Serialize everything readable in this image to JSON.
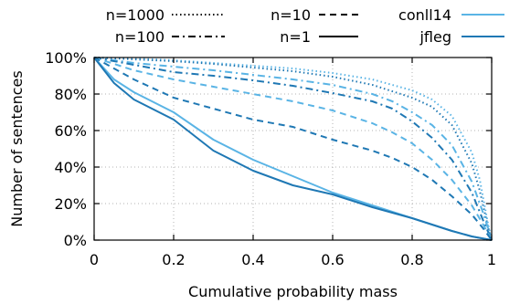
{
  "chart_data": {
    "type": "line",
    "xlabel": "Cumulative probability mass",
    "ylabel": "Number of sentences",
    "xlim": [
      0,
      1
    ],
    "ylim": [
      0,
      100
    ],
    "x_ticks": [
      "0",
      "0.2",
      "0.4",
      "0.6",
      "0.8",
      "1"
    ],
    "y_ticks": [
      "0%",
      "20%",
      "40%",
      "60%",
      "80%",
      "100%"
    ],
    "grid": true,
    "legend_placement": "top",
    "legend": {
      "styles": [
        {
          "label": "n=1000",
          "dash": "dotted"
        },
        {
          "label": "n=10",
          "dash": "dashed"
        },
        {
          "label": "n=100",
          "dash": "dash-dot"
        },
        {
          "label": "n=1",
          "dash": "solid"
        }
      ],
      "datasets": [
        {
          "label": "conll14",
          "color": "#5ab4e5"
        },
        {
          "label": "jfleg",
          "color": "#1f78b4"
        }
      ]
    },
    "series": [
      {
        "dataset": "conll14",
        "n": "n=1000",
        "color": "#5ab4e5",
        "dash": "dotted",
        "x": [
          0,
          0.1,
          0.2,
          0.3,
          0.4,
          0.5,
          0.6,
          0.7,
          0.8,
          0.85,
          0.9,
          0.95,
          0.97,
          0.99,
          1
        ],
        "y": [
          100,
          99.5,
          98.5,
          97,
          95.5,
          94,
          91.5,
          88,
          82,
          77,
          68,
          48,
          33,
          10,
          0
        ]
      },
      {
        "dataset": "jfleg",
        "n": "n=1000",
        "color": "#1f78b4",
        "dash": "dotted",
        "x": [
          0,
          0.1,
          0.2,
          0.3,
          0.4,
          0.5,
          0.6,
          0.7,
          0.8,
          0.85,
          0.9,
          0.95,
          0.97,
          0.99,
          1
        ],
        "y": [
          100,
          99,
          98,
          96.5,
          94.5,
          92.5,
          89.5,
          85,
          78,
          73,
          63,
          42,
          27,
          8,
          0
        ]
      },
      {
        "dataset": "conll14",
        "n": "n=100",
        "color": "#5ab4e5",
        "dash": "dash-dot",
        "x": [
          0,
          0.1,
          0.2,
          0.3,
          0.4,
          0.5,
          0.6,
          0.7,
          0.75,
          0.8,
          0.85,
          0.9,
          0.95,
          0.98,
          1
        ],
        "y": [
          100,
          97,
          95,
          93,
          90.5,
          88,
          85,
          80,
          76,
          70,
          63,
          52,
          32,
          14,
          0
        ]
      },
      {
        "dataset": "jfleg",
        "n": "n=100",
        "color": "#1f78b4",
        "dash": "dash-dot",
        "x": [
          0,
          0.1,
          0.2,
          0.3,
          0.4,
          0.5,
          0.6,
          0.7,
          0.75,
          0.8,
          0.85,
          0.9,
          0.95,
          0.98,
          1
        ],
        "y": [
          100,
          96,
          92,
          90,
          87.5,
          84.5,
          80.5,
          76,
          72,
          65,
          56,
          44,
          26,
          10,
          0
        ]
      },
      {
        "dataset": "conll14",
        "n": "n=10",
        "color": "#5ab4e5",
        "dash": "dashed",
        "x": [
          0,
          0.1,
          0.2,
          0.3,
          0.4,
          0.5,
          0.6,
          0.7,
          0.75,
          0.8,
          0.85,
          0.9,
          0.95,
          0.98,
          1
        ],
        "y": [
          100,
          93,
          88,
          84,
          80,
          76,
          71,
          64,
          59,
          53,
          44,
          33,
          19,
          8,
          0
        ]
      },
      {
        "dataset": "jfleg",
        "n": "n=10",
        "color": "#1f78b4",
        "dash": "dashed",
        "x": [
          0,
          0.1,
          0.2,
          0.3,
          0.4,
          0.5,
          0.6,
          0.7,
          0.75,
          0.8,
          0.85,
          0.9,
          0.95,
          0.98,
          1
        ],
        "y": [
          100,
          88,
          78,
          72,
          66,
          62,
          55,
          49,
          45,
          40,
          33,
          24,
          14,
          6,
          0
        ]
      },
      {
        "dataset": "conll14",
        "n": "n=1",
        "color": "#5ab4e5",
        "dash": "solid",
        "x": [
          0,
          0.05,
          0.1,
          0.2,
          0.3,
          0.4,
          0.5,
          0.6,
          0.7,
          0.8,
          0.9,
          0.95,
          1
        ],
        "y": [
          100,
          88,
          81,
          70,
          55,
          44,
          35,
          26,
          19,
          12,
          5,
          2,
          0
        ]
      },
      {
        "dataset": "jfleg",
        "n": "n=1",
        "color": "#1f78b4",
        "dash": "solid",
        "x": [
          0,
          0.05,
          0.1,
          0.2,
          0.3,
          0.4,
          0.5,
          0.6,
          0.7,
          0.8,
          0.9,
          0.95,
          1
        ],
        "y": [
          100,
          86,
          77,
          66,
          49,
          38,
          30,
          25,
          18,
          12,
          5,
          2,
          0
        ]
      }
    ]
  }
}
